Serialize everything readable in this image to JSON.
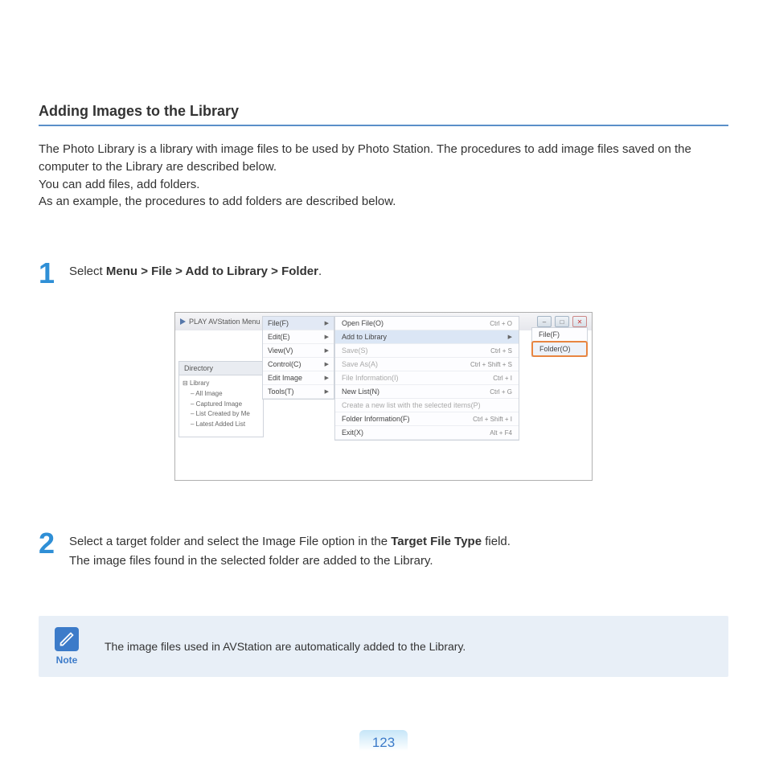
{
  "section_title": "Adding Images to the Library",
  "intro": {
    "p1": "The Photo Library is a library with image files to be used by Photo Station. The procedures to add image files saved on the computer to the Library are described below.",
    "p2": "You can add files, add folders.",
    "p3": "As an example, the procedures to add folders are described below."
  },
  "step1": {
    "number": "1",
    "prefix": "Select ",
    "bold": "Menu > File > Add to Library > Folder",
    "suffix": "."
  },
  "screenshot": {
    "titlebar_text": "PLAY AVStation  Menu",
    "directory_label": "Directory",
    "tree": {
      "root": "Library",
      "items": [
        "All Image",
        "Captured Image",
        "List Created by Me",
        "Latest Added List"
      ]
    },
    "menu": [
      {
        "label": "File(F)",
        "highlight": true
      },
      {
        "label": "Edit(E)",
        "highlight": false
      },
      {
        "label": "View(V)",
        "highlight": false
      },
      {
        "label": "Control(C)",
        "highlight": false
      },
      {
        "label": "Edit Image",
        "highlight": false
      },
      {
        "label": "Tools(T)",
        "highlight": false
      }
    ],
    "submenu": [
      {
        "label": "Open File(O)",
        "shortcut": "Ctrl + O",
        "highlight": false,
        "arrow": false
      },
      {
        "label": "Add to Library",
        "shortcut": "",
        "highlight": true,
        "arrow": true
      },
      {
        "label": "Save(S)",
        "shortcut": "Ctrl + S",
        "highlight": false,
        "disabled": true
      },
      {
        "label": "Save As(A)",
        "shortcut": "Ctrl + Shift + S",
        "highlight": false,
        "disabled": true
      },
      {
        "label": "File Information(I)",
        "shortcut": "Ctrl + I",
        "highlight": false,
        "disabled": true
      },
      {
        "label": "New List(N)",
        "shortcut": "Ctrl + G",
        "highlight": false
      },
      {
        "label": "Create a new list with the selected items(P)",
        "shortcut": "",
        "highlight": false,
        "disabled": true
      },
      {
        "label": "Folder Information(F)",
        "shortcut": "Ctrl + Shift + I",
        "highlight": false
      },
      {
        "label": "Exit(X)",
        "shortcut": "Alt + F4",
        "highlight": false
      }
    ],
    "flyout": [
      {
        "label": "File(F)",
        "highlight": false
      },
      {
        "label": "Folder(O)",
        "highlight": true
      }
    ]
  },
  "step2": {
    "number": "2",
    "line1_pre": "Select a target folder and select the Image File option in the ",
    "line1_bold": "Target File Type",
    "line1_post": " field.",
    "line2": "The image files found in the selected folder are added to the Library."
  },
  "note": {
    "label": "Note",
    "text": "The image files used in AVStation are automatically added to the Library."
  },
  "page_number": "123",
  "colors": {
    "accent_blue": "#2f8fd6",
    "rule_blue": "#5a8fc8",
    "note_bg": "#e8eff7",
    "highlight_orange": "#e88540"
  }
}
